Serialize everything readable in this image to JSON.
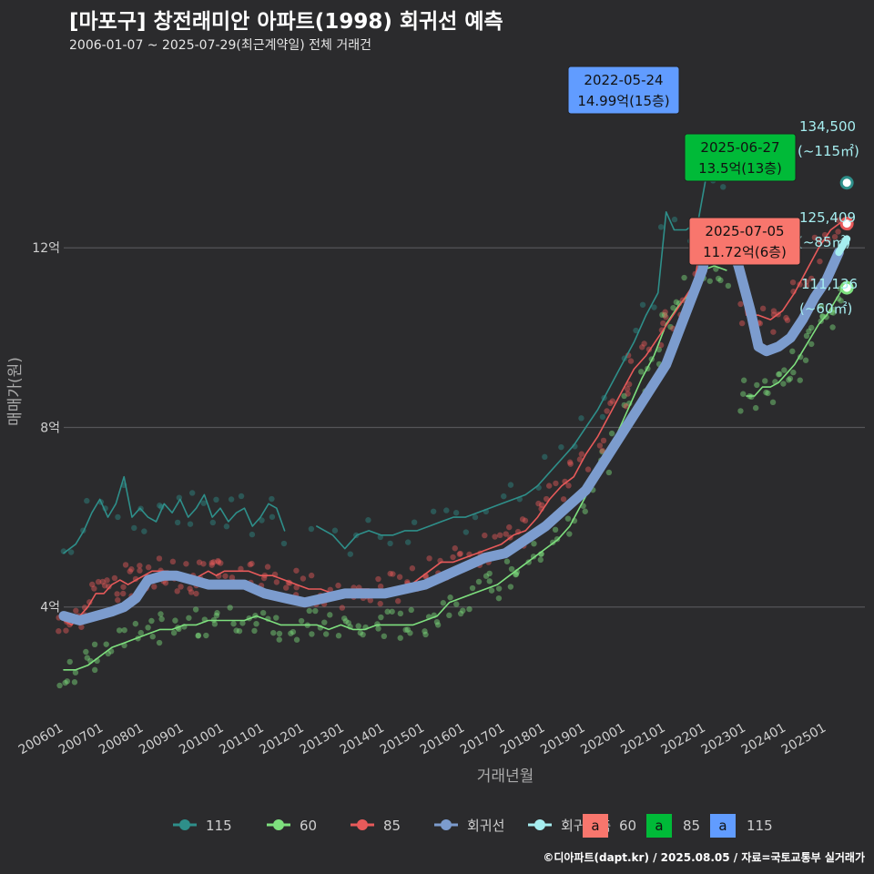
{
  "title": "[마포구] 창전래미안 아파트(1998) 회귀선 예측",
  "subtitle": "2006-01-07 ~ 2025-07-29(최근계약일) 전체 거래건",
  "credit": "©디아파트(dapt.kr) / 2025.08.05 / 자료=국토교통부 실거래가",
  "colors": {
    "background": "#2b2b2d",
    "grid": "#555558",
    "text": "#cfcfcf",
    "s115": "#2e8f8a",
    "s60": "#7ee07e",
    "s85": "#e85a5a",
    "regression": "#7c9cce",
    "forecast": "#a6eef0",
    "box60": "#f8766d",
    "box85": "#00ba38",
    "box115": "#619cff"
  },
  "chart_data": {
    "type": "line",
    "xlabel": "거래년월",
    "ylabel": "매매가(원)",
    "xlim": [
      2006.0,
      2025.95
    ],
    "ylim": [
      1.5,
      16.0
    ],
    "yticks": [
      {
        "v": 4,
        "label": "4억"
      },
      {
        "v": 8,
        "label": "8억"
      },
      {
        "v": 12,
        "label": "12억"
      }
    ],
    "xticks": [
      {
        "v": 2006,
        "label": "200601"
      },
      {
        "v": 2007,
        "label": "200701"
      },
      {
        "v": 2008,
        "label": "200801"
      },
      {
        "v": 2009,
        "label": "200901"
      },
      {
        "v": 2010,
        "label": "201001"
      },
      {
        "v": 2011,
        "label": "201101"
      },
      {
        "v": 2012,
        "label": "201201"
      },
      {
        "v": 2013,
        "label": "201301"
      },
      {
        "v": 2014,
        "label": "201401"
      },
      {
        "v": 2015,
        "label": "201501"
      },
      {
        "v": 2016,
        "label": "201601"
      },
      {
        "v": 2017,
        "label": "201701"
      },
      {
        "v": 2018,
        "label": "201801"
      },
      {
        "v": 2019,
        "label": "201901"
      },
      {
        "v": 2020,
        "label": "202001"
      },
      {
        "v": 2021,
        "label": "202101"
      },
      {
        "v": 2022,
        "label": "202201"
      },
      {
        "v": 2023,
        "label": "202301"
      },
      {
        "v": 2024,
        "label": "202401"
      },
      {
        "v": 2025,
        "label": "202501"
      }
    ],
    "series": [
      {
        "name": "115",
        "color": "#2e8f8a",
        "x": [
          2006.0,
          2006.3,
          2006.5,
          2006.7,
          2006.9,
          2007.1,
          2007.3,
          2007.5,
          2007.7,
          2007.9,
          2008.1,
          2008.3,
          2008.5,
          2008.7,
          2008.9,
          2009.1,
          2009.3,
          2009.5,
          2009.7,
          2009.9,
          2010.1,
          2010.3,
          2010.5,
          2010.7,
          2010.9,
          2011.1,
          2011.3,
          2011.5
        ],
        "y": [
          5.2,
          5.4,
          5.7,
          6.1,
          6.4,
          6.0,
          6.3,
          6.9,
          6.0,
          6.2,
          6.0,
          5.9,
          6.3,
          6.1,
          6.4,
          6.0,
          6.2,
          6.5,
          6.0,
          6.2,
          5.9,
          6.1,
          6.2,
          5.8,
          6.0,
          6.3,
          6.2,
          5.7
        ]
      },
      {
        "name": "115",
        "color": "#2e8f8a",
        "x": [
          2012.3,
          2012.7,
          2013.0,
          2013.3,
          2013.6,
          2013.9,
          2014.2,
          2014.5,
          2014.8,
          2015.1,
          2015.4,
          2015.7,
          2016.0,
          2016.3,
          2016.6,
          2016.9,
          2017.2,
          2017.5,
          2017.8,
          2018.1,
          2018.4,
          2018.7,
          2019.0,
          2019.3,
          2019.6,
          2019.9,
          2020.2,
          2020.5,
          2020.8,
          2021.0,
          2021.2,
          2021.5,
          2021.8,
          2022.0,
          2022.3,
          2022.5
        ],
        "y": [
          5.8,
          5.6,
          5.3,
          5.6,
          5.7,
          5.6,
          5.6,
          5.7,
          5.7,
          5.8,
          5.9,
          6.0,
          6.0,
          6.1,
          6.2,
          6.3,
          6.4,
          6.5,
          6.7,
          7.0,
          7.3,
          7.6,
          8.0,
          8.4,
          8.9,
          9.4,
          9.9,
          10.5,
          11.0,
          12.8,
          12.4,
          12.4,
          12.6,
          13.6,
          13.6,
          13.5
        ]
      },
      {
        "name": "60",
        "color": "#7ee07e",
        "x": [
          2006.0,
          2006.3,
          2006.6,
          2006.9,
          2007.2,
          2007.5,
          2007.8,
          2008.1,
          2008.4,
          2008.7,
          2009.0,
          2009.3,
          2009.6,
          2009.9,
          2010.2,
          2010.5,
          2010.8,
          2011.1,
          2011.4,
          2011.7,
          2012.0,
          2012.3,
          2012.6,
          2012.9,
          2013.2,
          2013.5,
          2013.8,
          2014.1,
          2014.4,
          2014.7,
          2015.0,
          2015.3,
          2015.6,
          2015.9,
          2016.2,
          2016.5,
          2016.8,
          2017.1,
          2017.4,
          2017.7,
          2018.0,
          2018.3,
          2018.6,
          2018.9,
          2019.2,
          2019.5,
          2019.8,
          2020.1,
          2020.4,
          2020.7,
          2021.0,
          2021.3,
          2021.6,
          2021.9,
          2022.2,
          2022.5
        ],
        "y": [
          2.6,
          2.6,
          2.7,
          2.9,
          3.1,
          3.2,
          3.3,
          3.4,
          3.5,
          3.5,
          3.6,
          3.6,
          3.7,
          3.7,
          3.7,
          3.7,
          3.8,
          3.7,
          3.6,
          3.6,
          3.6,
          3.6,
          3.5,
          3.6,
          3.5,
          3.5,
          3.6,
          3.6,
          3.6,
          3.6,
          3.7,
          3.8,
          4.1,
          4.2,
          4.3,
          4.4,
          4.5,
          4.7,
          4.9,
          5.1,
          5.3,
          5.5,
          5.8,
          6.3,
          6.8,
          7.3,
          7.9,
          8.5,
          9.1,
          9.6,
          10.3,
          10.7,
          11.0,
          11.5,
          11.6,
          11.5
        ]
      },
      {
        "name": "60",
        "color": "#7ee07e",
        "x": [
          2023.0,
          2023.2,
          2023.4,
          2023.6,
          2023.8,
          2024.0,
          2024.2,
          2024.4,
          2024.6,
          2024.8,
          2025.0,
          2025.2,
          2025.4
        ],
        "y": [
          8.7,
          8.7,
          8.9,
          8.9,
          9.0,
          9.2,
          9.4,
          9.7,
          10.0,
          10.3,
          10.5,
          10.8,
          11.1
        ]
      },
      {
        "name": "85",
        "color": "#e85a5a",
        "x": [
          2006.0,
          2006.2,
          2006.4,
          2006.6,
          2006.8,
          2007.0,
          2007.2,
          2007.4,
          2007.6,
          2007.8,
          2008.0,
          2008.2,
          2008.4,
          2008.6,
          2008.8,
          2009.0,
          2009.2,
          2009.4,
          2009.6,
          2009.8,
          2010.0,
          2010.3,
          2010.6,
          2010.9,
          2011.2,
          2011.5,
          2011.8,
          2012.1,
          2012.4,
          2012.7,
          2013.0,
          2013.3,
          2013.6,
          2013.9,
          2014.2,
          2014.5,
          2014.8,
          2015.1,
          2015.4,
          2015.7,
          2016.0,
          2016.3,
          2016.6,
          2016.9,
          2017.2,
          2017.5,
          2017.8,
          2018.1,
          2018.4,
          2018.7,
          2019.0,
          2019.3,
          2019.6,
          2019.9,
          2020.2,
          2020.5,
          2020.8,
          2021.1,
          2021.4,
          2021.7,
          2021.9,
          2022.1,
          2022.4,
          2022.7,
          2023.0,
          2023.3,
          2023.6,
          2023.9,
          2024.2,
          2024.5,
          2024.8,
          2025.1,
          2025.4
        ],
        "y": [
          3.7,
          3.6,
          3.8,
          4.0,
          4.3,
          4.3,
          4.5,
          4.6,
          4.5,
          4.6,
          4.7,
          4.8,
          4.8,
          4.8,
          4.7,
          4.7,
          4.6,
          4.7,
          4.8,
          4.7,
          4.8,
          4.8,
          4.8,
          4.7,
          4.7,
          4.6,
          4.5,
          4.4,
          4.4,
          4.3,
          4.3,
          4.4,
          4.4,
          4.3,
          4.4,
          4.4,
          4.6,
          4.8,
          5.0,
          5.0,
          5.1,
          5.2,
          5.3,
          5.4,
          5.6,
          5.7,
          6.0,
          6.4,
          6.7,
          6.9,
          7.4,
          7.8,
          8.3,
          8.8,
          9.3,
          9.6,
          10.0,
          10.4,
          10.8,
          11.2,
          12.3,
          12.5,
          12.4,
          12.1,
          10.5,
          10.5,
          10.4,
          10.6,
          11.0,
          11.5,
          12.0,
          12.4,
          12.6
        ]
      },
      {
        "name": "회귀선",
        "color": "#7c9cce",
        "x": [
          2006.0,
          2006.4,
          2006.8,
          2007.2,
          2007.5,
          2007.8,
          2008.1,
          2008.5,
          2008.8,
          2009.2,
          2009.6,
          2010.0,
          2010.5,
          2011.0,
          2011.5,
          2012.0,
          2012.5,
          2013.0,
          2013.5,
          2014.0,
          2014.5,
          2015.0,
          2015.5,
          2016.0,
          2016.5,
          2017.0,
          2017.5,
          2018.0,
          2018.5,
          2019.0,
          2019.5,
          2020.0,
          2020.5,
          2021.0,
          2021.3,
          2021.6,
          2021.9,
          2022.1,
          2022.3,
          2022.5,
          2022.8,
          2023.1,
          2023.3,
          2023.5,
          2023.8,
          2024.1,
          2024.4,
          2024.7,
          2025.0,
          2025.3
        ],
        "y": [
          3.8,
          3.7,
          3.8,
          3.9,
          4.0,
          4.2,
          4.6,
          4.7,
          4.7,
          4.6,
          4.5,
          4.5,
          4.5,
          4.3,
          4.2,
          4.1,
          4.2,
          4.3,
          4.3,
          4.3,
          4.4,
          4.5,
          4.7,
          4.9,
          5.1,
          5.2,
          5.5,
          5.8,
          6.2,
          6.6,
          7.3,
          8.0,
          8.7,
          9.4,
          10.1,
          10.8,
          11.5,
          12.3,
          12.4,
          12.3,
          11.6,
          10.6,
          9.8,
          9.7,
          9.8,
          10.0,
          10.4,
          10.9,
          11.3,
          11.9
        ]
      },
      {
        "name": "회귀예측",
        "color": "#a6eef0",
        "x": [
          2025.3,
          2025.5
        ],
        "y": [
          11.9,
          12.2
        ]
      }
    ],
    "end_labels": [
      {
        "x": 2025.5,
        "y": 13.45,
        "color": "#2e8f8a",
        "value": "134,500",
        "area": "(~115㎡)"
      },
      {
        "x": 2025.5,
        "y": 12.54,
        "color": "#e85a5a",
        "value": "125,409",
        "area": "(~85㎡)"
      },
      {
        "x": 2025.5,
        "y": 11.11,
        "color": "#7ee07e",
        "value": "111,136",
        "area": "(~60㎡)"
      }
    ],
    "callouts": [
      {
        "x": 2022.4,
        "y": 14.99,
        "color": "#619cff",
        "date": "2022-05-24",
        "price": "14.99억(15층)"
      },
      {
        "x": 2025.5,
        "y": 13.5,
        "color": "#00ba38",
        "date": "2025-06-27",
        "price": "13.5억(13층)"
      },
      {
        "x": 2025.5,
        "y": 11.72,
        "color": "#f8766d",
        "date": "2025-07-05",
        "price": "11.72억(6층)"
      }
    ],
    "legend": {
      "items": [
        {
          "label": "115",
          "color": "#2e8f8a"
        },
        {
          "label": "60",
          "color": "#7ee07e"
        },
        {
          "label": "85",
          "color": "#e85a5a"
        },
        {
          "label": "회귀선",
          "color": "#7c9cce"
        },
        {
          "label": "회귀예측",
          "color": "#a6eef0"
        }
      ],
      "boxes": [
        {
          "label": "60",
          "letter": "a",
          "color": "#f8766d"
        },
        {
          "label": "85",
          "letter": "a",
          "color": "#00ba38"
        },
        {
          "label": "115",
          "letter": "a",
          "color": "#619cff"
        }
      ]
    }
  }
}
